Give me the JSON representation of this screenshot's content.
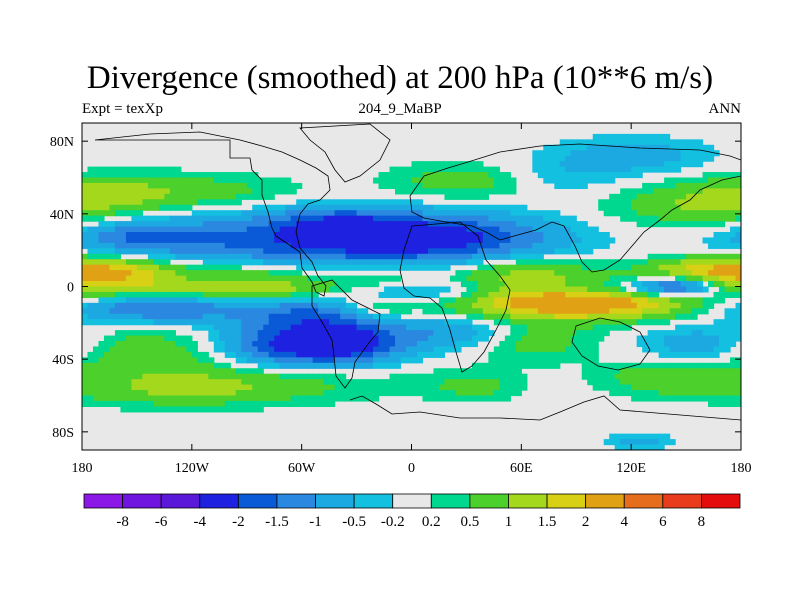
{
  "chart_data": {
    "type": "heatmap",
    "title": "Divergence (smoothed) at 200 hPa (10**6 m/s)",
    "subtitle_left": "Expt = texXp",
    "subtitle_center": "204_9_MaBP",
    "subtitle_right": "ANN",
    "x_range": [
      -180,
      180
    ],
    "y_range": [
      -90,
      90
    ],
    "x_ticks": [
      {
        "value": -180,
        "label": "180"
      },
      {
        "value": -120,
        "label": "120W"
      },
      {
        "value": -60,
        "label": "60W"
      },
      {
        "value": 0,
        "label": "0"
      },
      {
        "value": 60,
        "label": "60E"
      },
      {
        "value": 120,
        "label": "120E"
      },
      {
        "value": 180,
        "label": "180"
      }
    ],
    "y_ticks": [
      {
        "value": 80,
        "label": "80N"
      },
      {
        "value": 40,
        "label": "40N"
      },
      {
        "value": 0,
        "label": "0"
      },
      {
        "value": -40,
        "label": "40S"
      },
      {
        "value": -80,
        "label": "80S"
      }
    ],
    "colorbar": {
      "colors": [
        "#8c18e8",
        "#7014e0",
        "#5a18d8",
        "#1e22e0",
        "#0a5ad8",
        "#2a88e0",
        "#1ca8e0",
        "#14c0e0",
        "#e8e8e8",
        "#00d890",
        "#4cd02c",
        "#a4d81c",
        "#d8d014",
        "#e0a214",
        "#e66d1c",
        "#e83c1c",
        "#e40c0c"
      ],
      "levels": [
        "-8",
        "-6",
        "-4",
        "-2",
        "-1.5",
        "-1",
        "-0.5",
        "-0.2",
        "0.2",
        "0.5",
        "1",
        "1.5",
        "2",
        "4",
        "6",
        "8"
      ]
    },
    "field_features": [
      {
        "lon": -170,
        "lat": 48,
        "sx": 28,
        "sy": 9,
        "value": 0.7
      },
      {
        "lon": -125,
        "lat": 52,
        "sx": 45,
        "sy": 7,
        "value": 0.8
      },
      {
        "lon": 30,
        "lat": 58,
        "sx": 30,
        "sy": 7,
        "value": 0.8
      },
      {
        "lon": 150,
        "lat": 44,
        "sx": 32,
        "sy": 9,
        "value": 0.8
      },
      {
        "lon": 120,
        "lat": 72,
        "sx": 30,
        "sy": 7,
        "value": -0.8
      },
      {
        "lon": 80,
        "lat": 60,
        "sx": 25,
        "sy": 7,
        "value": -0.5
      },
      {
        "lon": -70,
        "lat": 25,
        "sx": 70,
        "sy": 11,
        "value": -1.6
      },
      {
        "lon": -40,
        "lat": 35,
        "sx": 25,
        "sy": 7,
        "value": -1.0
      },
      {
        "lon": 15,
        "lat": 27,
        "sx": 45,
        "sy": 9,
        "value": -1.8
      },
      {
        "lon": -150,
        "lat": 28,
        "sx": 22,
        "sy": 6,
        "value": -0.9
      },
      {
        "lon": -160,
        "lat": 8,
        "sx": 25,
        "sy": 6,
        "value": 1.8
      },
      {
        "lon": -90,
        "lat": 8,
        "sx": 30,
        "sy": 5,
        "value": 0.9
      },
      {
        "lon": -20,
        "lat": 5,
        "sx": 18,
        "sy": 5,
        "value": 0.6
      },
      {
        "lon": 60,
        "lat": 8,
        "sx": 28,
        "sy": 6,
        "value": 1.1
      },
      {
        "lon": 160,
        "lat": 8,
        "sx": 25,
        "sy": 6,
        "value": 1.7
      },
      {
        "lon": 145,
        "lat": 0,
        "sx": 18,
        "sy": 4,
        "value": -2.6
      },
      {
        "lon": 100,
        "lat": -2,
        "sx": 25,
        "sy": 4,
        "value": -1.0
      },
      {
        "lon": -130,
        "lat": -2,
        "sx": 40,
        "sy": 4,
        "value": 1.2
      },
      {
        "lon": -70,
        "lat": -1,
        "sx": 25,
        "sy": 4,
        "value": 0.9
      },
      {
        "lon": 10,
        "lat": -3,
        "sx": 30,
        "sy": 4,
        "value": -1.0
      },
      {
        "lon": 90,
        "lat": -8,
        "sx": 45,
        "sy": 7,
        "value": 3.0
      },
      {
        "lon": -140,
        "lat": -12,
        "sx": 35,
        "sy": 6,
        "value": -1.6
      },
      {
        "lon": -55,
        "lat": -15,
        "sx": 25,
        "sy": 6,
        "value": -1.2
      },
      {
        "lon": -20,
        "lat": -12,
        "sx": 15,
        "sy": 5,
        "value": 0.7
      },
      {
        "lon": -60,
        "lat": -32,
        "sx": 30,
        "sy": 9,
        "value": -2.4
      },
      {
        "lon": -30,
        "lat": -30,
        "sx": 20,
        "sy": 8,
        "value": -1.2
      },
      {
        "lon": 25,
        "lat": -25,
        "sx": 25,
        "sy": 7,
        "value": -1.0
      },
      {
        "lon": -150,
        "lat": -35,
        "sx": 35,
        "sy": 10,
        "value": 0.9
      },
      {
        "lon": 65,
        "lat": -30,
        "sx": 25,
        "sy": 8,
        "value": 0.8
      },
      {
        "lon": 160,
        "lat": -32,
        "sx": 25,
        "sy": 8,
        "value": -1.0
      },
      {
        "lon": -90,
        "lat": -52,
        "sx": 60,
        "sy": 8,
        "value": 0.8
      },
      {
        "lon": 140,
        "lat": -50,
        "sx": 25,
        "sy": 7,
        "value": 0.9
      },
      {
        "lon": 35,
        "lat": -55,
        "sx": 18,
        "sy": 6,
        "value": 0.6
      },
      {
        "lon": -130,
        "lat": -58,
        "sx": 40,
        "sy": 6,
        "value": 0.6
      },
      {
        "lon": 125,
        "lat": -85,
        "sx": 12,
        "sy": 3,
        "value": -0.7
      }
    ]
  }
}
